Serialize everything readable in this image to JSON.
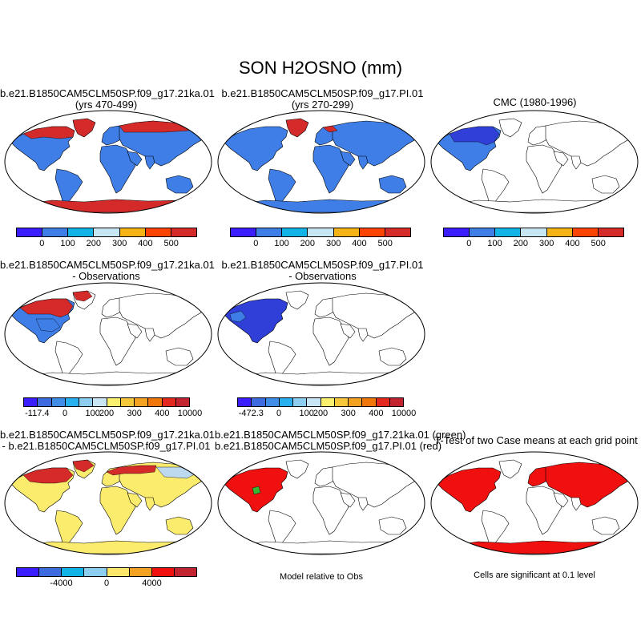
{
  "figure": {
    "title": "SON H2OSNO (mm)"
  },
  "palettes": {
    "abs": [
      "#3a1eff",
      "#3f7ee6",
      "#12b4e8",
      "#c6e6f4",
      "#f5b316",
      "#ff4300",
      "#d42a2a"
    ],
    "diff": [
      "#3a1eff",
      "#3f6be0",
      "#3f8de6",
      "#29b0ef",
      "#8ccdf0",
      "#c8e4f5",
      "#fbf06d",
      "#f7c83a",
      "#f3a222",
      "#f0760a",
      "#e2281f",
      "#c2232e"
    ],
    "casediff": [
      "#3a1eff",
      "#3f6be0",
      "#12b4e8",
      "#8ccdf0",
      "#fce76a",
      "#f3a222",
      "#f01010",
      "#c2232e"
    ]
  },
  "panels": [
    {
      "title1": "b.e21.B1850CAM5CLM50SP.f09_g17.21ka.01",
      "title2": "(yrs 470-499)",
      "colorbar": {
        "palette": "abs",
        "labels": [
          "0",
          "100",
          "200",
          "300",
          "400",
          "500"
        ]
      }
    },
    {
      "title1": "b.e21.B1850CAM5CLM50SP.f09_g17.PI.01",
      "title2": "(yrs 270-299)",
      "colorbar": {
        "palette": "abs",
        "labels": [
          "0",
          "100",
          "200",
          "300",
          "400",
          "500"
        ]
      }
    },
    {
      "title1": "CMC (1980-1996)",
      "title2": "",
      "colorbar": {
        "palette": "abs",
        "labels": [
          "0",
          "100",
          "200",
          "300",
          "400",
          "500"
        ]
      }
    },
    {
      "title1": "b.e21.B1850CAM5CLM50SP.f09_g17.21ka.01",
      "title2": "- Observations",
      "colorbar": {
        "palette": "diff",
        "labels": [
          "-117.4",
          "0",
          "100",
          "200",
          "300",
          "400",
          "10000"
        ]
      }
    },
    {
      "title1": "b.e21.B1850CAM5CLM50SP.f09_g17.PI.01",
      "title2": "- Observations",
      "colorbar": {
        "palette": "diff",
        "labels": [
          "-472.3",
          "0",
          "100",
          "200",
          "300",
          "400",
          "10000"
        ]
      }
    },
    {
      "title1": "b.e21.B1850CAM5CLM50SP.f09_g17.21ka.01",
      "title2": "- b.e21.B1850CAM5CLM50SP.f09_g17.PI.01",
      "colorbar": {
        "palette": "casediff",
        "labels": [
          "-4000",
          "0",
          "4000"
        ]
      }
    },
    {
      "title1": "b.e21.B1850CAM5CLM50SP.f09_g17.21ka.01 (green)",
      "title2": "b.e21.B1850CAM5CLM50SP.f09_g17.PI.01 (red)",
      "note": "Model relative to Obs"
    },
    {
      "title1": "T-Test of two Case means at each grid point",
      "title2": "",
      "note": "Cells are significant at 0.1 level"
    }
  ]
}
